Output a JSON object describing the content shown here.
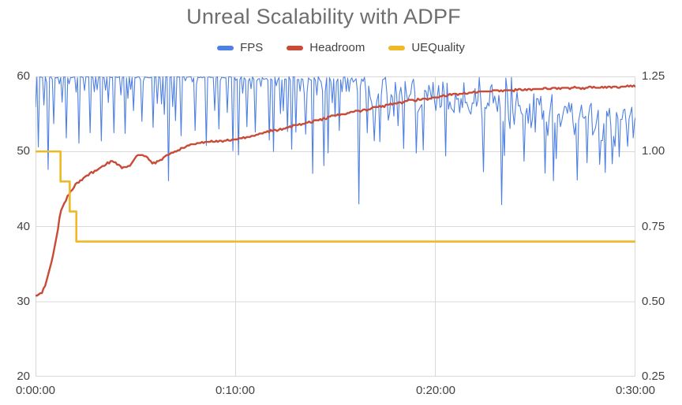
{
  "title": "Unreal Scalability with ADPF",
  "colors": {
    "fps": "#4e80e3",
    "headroom": "#c74b37",
    "uequality": "#efb826",
    "title_text": "#6e6e6e",
    "tick_text": "#424242",
    "gridline": "#d9d9d9"
  },
  "chart_data": {
    "type": "line",
    "title": "Unreal Scalability with ADPF",
    "legend_position": "top",
    "grid": true,
    "x_axis": {
      "ticks": [
        "0:00:00",
        "0:10:00",
        "0:20:00",
        "0:30:00"
      ],
      "tick_minutes": [
        0,
        10,
        20,
        30
      ],
      "range_minutes": [
        0,
        30
      ]
    },
    "left_axis": {
      "ticks": [
        "60",
        "50",
        "40",
        "30",
        "20"
      ],
      "tick_values": [
        60,
        50,
        40,
        30,
        20
      ],
      "range": [
        20,
        60
      ],
      "used_by": "FPS"
    },
    "right_axis": {
      "ticks": [
        "1.25",
        "1.00",
        "0.75",
        "0.50",
        "0.25"
      ],
      "tick_values": [
        1.25,
        1.0,
        0.75,
        0.5,
        0.25
      ],
      "range": [
        0.25,
        1.25
      ],
      "used_by": "Headroom, UEQuality"
    },
    "series": [
      {
        "name": "FPS",
        "color": "#4e80e3",
        "axis": "left",
        "baseline_fps": 60,
        "behavior": "holds ~60 fps with frequent brief dips; after ~16.5 min degrades into a noisy band drifting from ~57 down to ~53.5 fps",
        "notable_dips_min_fps": [
          [
            0.15,
            50.6
          ],
          [
            0.66,
            47.6
          ],
          [
            0.9,
            53.7
          ],
          [
            1.55,
            51.8
          ],
          [
            2.2,
            51.1
          ],
          [
            2.76,
            52.5
          ],
          [
            3.26,
            51.4
          ],
          [
            3.94,
            52.5
          ],
          [
            4.47,
            52.4
          ],
          [
            5.3,
            54.0
          ],
          [
            5.9,
            53.2
          ],
          [
            6.62,
            46.1
          ],
          [
            7.3,
            52.1
          ],
          [
            8.0,
            52.8
          ],
          [
            8.55,
            50.8
          ],
          [
            9.2,
            53.0
          ],
          [
            9.9,
            50.1
          ],
          [
            10.6,
            53.3
          ],
          [
            11.0,
            52.6
          ],
          [
            11.9,
            50.0
          ],
          [
            12.8,
            50.3
          ],
          [
            13.5,
            52.3
          ],
          [
            14.4,
            48.1
          ],
          [
            14.65,
            49.8
          ],
          [
            15.2,
            52.8
          ],
          [
            16.15,
            43.0
          ],
          [
            16.6,
            52.5
          ],
          [
            17.2,
            51.3
          ],
          [
            18.4,
            50.4
          ],
          [
            19.4,
            50.2
          ],
          [
            20.5,
            49.4
          ],
          [
            22.4,
            47.3
          ],
          [
            23.3,
            42.9
          ],
          [
            24.4,
            48.7
          ],
          [
            25.5,
            47.1
          ],
          [
            25.9,
            46.1
          ],
          [
            27.1,
            46.2
          ],
          [
            27.6,
            48.5
          ],
          [
            28.5,
            47.2
          ],
          [
            29.2,
            49.3
          ]
        ],
        "noisy_band_start_min": 16.4,
        "band_center_fps": [
          [
            16.4,
            57.8
          ],
          [
            18,
            57.2
          ],
          [
            20,
            56.6
          ],
          [
            22,
            56.0
          ],
          [
            24,
            55.4
          ],
          [
            26,
            54.6
          ],
          [
            27.5,
            53.7
          ],
          [
            28.6,
            53.2
          ],
          [
            29.4,
            53.3
          ],
          [
            30,
            53.6
          ]
        ],
        "band_halfwidth_fps": 2.2
      },
      {
        "name": "Headroom",
        "color": "#c74b37",
        "axis": "right",
        "points_min_value": [
          [
            0,
            0.522
          ],
          [
            0.3,
            0.528
          ],
          [
            0.5,
            0.557
          ],
          [
            0.7,
            0.607
          ],
          [
            0.9,
            0.662
          ],
          [
            1.1,
            0.732
          ],
          [
            1.25,
            0.797
          ],
          [
            1.45,
            0.83
          ],
          [
            1.65,
            0.857
          ],
          [
            2,
            0.89
          ],
          [
            2.3,
            0.907
          ],
          [
            2.6,
            0.92
          ],
          [
            3,
            0.935
          ],
          [
            3.4,
            0.952
          ],
          [
            3.85,
            0.97
          ],
          [
            4.1,
            0.957
          ],
          [
            4.35,
            0.947
          ],
          [
            4.7,
            0.952
          ],
          [
            5,
            0.98
          ],
          [
            5.2,
            0.99
          ],
          [
            5.5,
            0.987
          ],
          [
            5.8,
            0.962
          ],
          [
            6.1,
            0.965
          ],
          [
            6.5,
            0.985
          ],
          [
            7,
            1.0
          ],
          [
            7.4,
            1.012
          ],
          [
            7.9,
            1.025
          ],
          [
            8.4,
            1.032
          ],
          [
            9,
            1.032
          ],
          [
            9.5,
            1.035
          ],
          [
            10,
            1.04
          ],
          [
            10.8,
            1.05
          ],
          [
            11.5,
            1.065
          ],
          [
            12.3,
            1.075
          ],
          [
            13.2,
            1.09
          ],
          [
            14.2,
            1.105
          ],
          [
            15,
            1.12
          ],
          [
            16,
            1.132
          ],
          [
            17,
            1.147
          ],
          [
            18,
            1.16
          ],
          [
            19,
            1.172
          ],
          [
            20,
            1.18
          ],
          [
            21,
            1.19
          ],
          [
            22,
            1.197
          ],
          [
            23,
            1.202
          ],
          [
            24.5,
            1.206
          ],
          [
            26,
            1.21
          ],
          [
            27.5,
            1.212
          ],
          [
            29,
            1.215
          ],
          [
            30,
            1.218
          ]
        ]
      },
      {
        "name": "UEQuality",
        "color": "#efb826",
        "axis": "right",
        "step_points_min_value": [
          [
            0,
            1.0
          ],
          [
            1.25,
            0.9
          ],
          [
            1.71,
            0.8
          ],
          [
            2.04,
            0.7
          ]
        ],
        "end_min": 30
      }
    ]
  },
  "render_hints": {
    "noise_seed": 1337,
    "fps_sample_dt_min": 0.07,
    "headroom_sample_dt_min": 0.08,
    "headroom_jitter": 0.006
  }
}
